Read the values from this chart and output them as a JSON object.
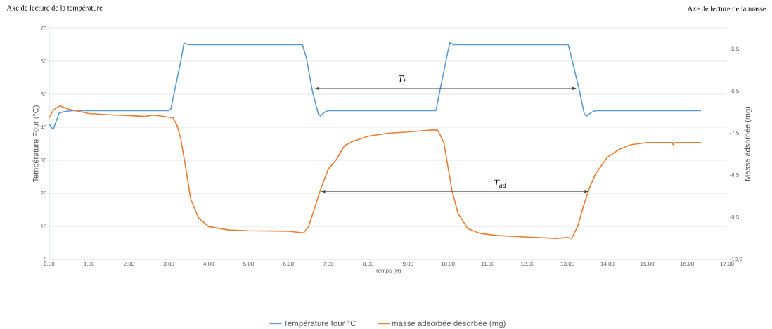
{
  "chart_data": {
    "type": "line",
    "annotations": [
      "Axe de lecture de la température",
      "Axe de lecture de la masse",
      "T$_{f}$",
      "T$_{ad}$"
    ],
    "xlabel": "Temps (H)",
    "ylabel": "Température Four (°C)",
    "y2label": "Masse adsorbée (mg)",
    "xlim": [
      0,
      17
    ],
    "xticks": [
      {
        "value": 0,
        "label": "0,00"
      },
      {
        "value": 1,
        "label": "1,00"
      },
      {
        "value": 2,
        "label": "2,00"
      },
      {
        "value": 3,
        "label": "3,00"
      },
      {
        "value": 4,
        "label": "4,00"
      },
      {
        "value": 5,
        "label": "5,00"
      },
      {
        "value": 6,
        "label": "6,00"
      },
      {
        "value": 7,
        "label": "7,00"
      },
      {
        "value": 8,
        "label": "8,00"
      },
      {
        "value": 9,
        "label": "9,00"
      },
      {
        "value": 10,
        "label": "10,00"
      },
      {
        "value": 11,
        "label": "11,00"
      },
      {
        "value": 12,
        "label": "12,00"
      },
      {
        "value": 13,
        "label": "13,00"
      },
      {
        "value": 14,
        "label": "14,00"
      },
      {
        "value": 15,
        "label": "15,00"
      },
      {
        "value": 16,
        "label": "16,00"
      },
      {
        "value": 17,
        "label": "17,00"
      }
    ],
    "ylim": [
      0,
      70
    ],
    "yticks": [
      0,
      10,
      20,
      30,
      40,
      50,
      60,
      70
    ],
    "y2lim": [
      -10.5,
      -5
    ],
    "y2ticks": [
      {
        "value": -10.5,
        "label": "-10,5"
      },
      {
        "value": -9.5,
        "label": "-9,5"
      },
      {
        "value": -8.5,
        "label": "-8,5"
      },
      {
        "value": -7.5,
        "label": "-7,5"
      },
      {
        "value": -6.5,
        "label": "-6,5"
      },
      {
        "value": -5.5,
        "label": "-5,5"
      }
    ],
    "grid": "y",
    "legend": "bottom",
    "marker": "none",
    "line_style": "solid",
    "series": [
      {
        "name": "Température four °C",
        "color": "#5b9bd5",
        "x": [
          0,
          0.05,
          0.1,
          0.15,
          0.25,
          0.4,
          0.6,
          3.0,
          3.05,
          3.3,
          3.38,
          3.5,
          4.0,
          6.35,
          6.45,
          6.6,
          6.75,
          6.8,
          6.9,
          7.0,
          9.7,
          9.78,
          10.0,
          10.05,
          10.15,
          10.5,
          13.02,
          13.1,
          13.3,
          13.42,
          13.48,
          13.6,
          13.7,
          16.35
        ],
        "values": [
          41,
          40,
          39.3,
          41,
          44.3,
          44.8,
          45,
          45,
          45.5,
          60,
          65.5,
          65,
          65,
          65,
          61,
          51,
          44,
          43.4,
          44.5,
          45,
          45,
          50,
          63,
          65.6,
          65,
          65,
          65,
          61,
          51,
          44,
          43.4,
          44.5,
          45,
          45
        ]
      },
      {
        "name": "masse adsorbée désorbée (mg)",
        "color": "#ed7d31",
        "axis": "y2",
        "x": [
          0,
          0.1,
          0.27,
          0.5,
          1,
          1.5,
          2,
          2.4,
          2.6,
          2.8,
          3,
          3.1,
          3.2,
          3.3,
          3.45,
          3.55,
          3.75,
          4,
          4.5,
          5,
          6,
          6.38,
          6.5,
          6.65,
          6.8,
          7,
          7.2,
          7.4,
          7.6,
          8,
          8.5,
          9,
          9.6,
          9.75,
          9.9,
          10,
          10.1,
          10.25,
          10.5,
          10.8,
          11.2,
          12,
          12.7,
          13,
          13.1,
          13.25,
          13.4,
          13.55,
          13.7,
          14,
          14.3,
          14.6,
          15,
          15.5,
          15.63,
          15.65,
          15.67,
          16.35
        ],
        "values": [
          -7.13,
          -6.95,
          -6.85,
          -6.93,
          -7.03,
          -7.06,
          -7.08,
          -7.1,
          -7.07,
          -7.09,
          -7.12,
          -7.13,
          -7.3,
          -7.63,
          -8.47,
          -9.07,
          -9.52,
          -9.72,
          -9.8,
          -9.82,
          -9.83,
          -9.87,
          -9.73,
          -9.3,
          -8.85,
          -8.35,
          -8.13,
          -7.8,
          -7.7,
          -7.57,
          -7.5,
          -7.47,
          -7.42,
          -7.43,
          -7.73,
          -8.3,
          -8.85,
          -9.4,
          -9.77,
          -9.88,
          -9.93,
          -9.97,
          -10,
          -9.98,
          -10,
          -9.73,
          -9.23,
          -8.8,
          -8.47,
          -8.07,
          -7.88,
          -7.77,
          -7.72,
          -7.72,
          -7.72,
          -7.78,
          -7.72,
          -7.72
        ]
      }
    ]
  }
}
